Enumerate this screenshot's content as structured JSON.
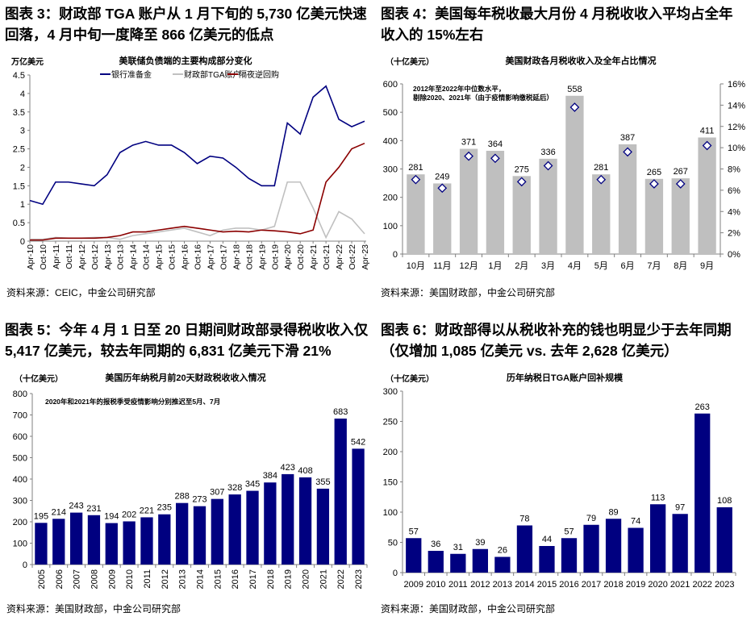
{
  "panels": [
    {
      "title_line1": "图表 3：财政部 TGA 账户从 1 月下旬的 5,730 亿美元快速",
      "title_line2": "回落，4 月中旬一度降至 866 亿美元的低点",
      "source": "资料来源：CEIC，中金公司研究部"
    },
    {
      "title_line1": "图表 4：美国每年税收最大月份 4 月税收收入平均占全年",
      "title_line2": "收入的 15%左右",
      "source": "资料来源：美国财政部，中金公司研究部"
    },
    {
      "title_line1": "图表 5：今年 4 月 1 日至 20 日期间财政部录得税收收入仅",
      "title_line2": "5,417 亿美元，较去年同期的 6,831 亿美元下滑 21%",
      "source": "资料来源：美国财政部，中金公司研究部"
    },
    {
      "title_line1": "图表  6：财政部得以从税收补充的钱也明显少于去年同期",
      "title_line2": "（仅增加 1,085 亿美元  vs. 去年 2,628 亿美元）",
      "source": "资料来源：美国财政部，中金公司研究部"
    }
  ],
  "chart_data": [
    {
      "type": "line",
      "title": "美联储负债端的主要构成部分变化",
      "ylabel": "万亿美元",
      "ylim": [
        0,
        4.5
      ],
      "yticks": [
        "0",
        "0.5",
        "1",
        "1.5",
        "2",
        "2.5",
        "3",
        "3.5",
        "4",
        "4.5"
      ],
      "legend_position": "top",
      "x": [
        "Apr-10",
        "Oct-10",
        "Apr-11",
        "Oct-11",
        "Apr-12",
        "Oct-12",
        "Apr-13",
        "Oct-13",
        "Apr-14",
        "Oct-14",
        "Apr-15",
        "Oct-15",
        "Apr-16",
        "Oct-16",
        "Apr-17",
        "Oct-17",
        "Apr-18",
        "Oct-18",
        "Apr-19",
        "Oct-19",
        "Apr-20",
        "Oct-20",
        "Apr-21",
        "Oct-21",
        "Apr-22",
        "Oct-22",
        "Apr-23"
      ],
      "series": [
        {
          "name": "银行准备金",
          "color": "#000080",
          "values": [
            1.1,
            1.0,
            1.6,
            1.6,
            1.55,
            1.5,
            1.8,
            2.4,
            2.6,
            2.7,
            2.6,
            2.6,
            2.4,
            2.1,
            2.3,
            2.25,
            2.0,
            1.7,
            1.5,
            1.5,
            3.2,
            2.9,
            3.9,
            4.2,
            3.3,
            3.1,
            3.25
          ]
        },
        {
          "name": "财政部TGA账户",
          "color": "#c0c0c0",
          "values": [
            0.05,
            0.05,
            0.1,
            0.08,
            0.08,
            0.1,
            0.1,
            0.05,
            0.15,
            0.2,
            0.25,
            0.3,
            0.35,
            0.25,
            0.15,
            0.3,
            0.35,
            0.35,
            0.3,
            0.4,
            1.6,
            1.6,
            0.9,
            0.1,
            0.8,
            0.6,
            0.2
          ]
        },
        {
          "name": "隔夜逆回购",
          "color": "#8b0000",
          "values": [
            0.03,
            0.03,
            0.08,
            0.08,
            0.08,
            0.08,
            0.1,
            0.15,
            0.25,
            0.25,
            0.3,
            0.35,
            0.4,
            0.35,
            0.3,
            0.25,
            0.27,
            0.25,
            0.3,
            0.28,
            0.25,
            0.2,
            0.3,
            1.6,
            2.0,
            2.5,
            2.65
          ]
        }
      ]
    },
    {
      "type": "bar",
      "title": "美国财政各月税收收入及全年占比情况",
      "ylabel": "（十亿美元）",
      "annotation_line1": "2012年至2022年中位数水平，",
      "annotation_line2": "剔除2020、2021年（由于疫情影响缴税延后）",
      "ylim": [
        0,
        600
      ],
      "yticks": [
        "0",
        "100",
        "200",
        "300",
        "400",
        "500",
        "600"
      ],
      "y2lim": [
        0,
        16
      ],
      "y2ticks": [
        "0%",
        "2%",
        "4%",
        "6%",
        "8%",
        "10%",
        "12%",
        "14%",
        "16%"
      ],
      "categories": [
        "10月",
        "11月",
        "12月",
        "1月",
        "2月",
        "3月",
        "4月",
        "5月",
        "6月",
        "7月",
        "8月",
        "9月"
      ],
      "values": [
        281,
        249,
        371,
        364,
        275,
        336,
        558,
        281,
        387,
        265,
        267,
        411
      ],
      "value_labels": [
        "281",
        "249",
        "371",
        "364",
        "275",
        "336",
        "558",
        "281",
        "387",
        "265",
        "267",
        "411"
      ],
      "share_pct": [
        7.0,
        6.2,
        9.2,
        9.0,
        6.8,
        8.3,
        13.8,
        7.0,
        9.6,
        6.6,
        6.6,
        10.2
      ],
      "bar_color": "#bfbfbf"
    },
    {
      "type": "bar",
      "title": "美国历年纳税月前20天财政税收收入情况",
      "ylabel": "（十亿美元）",
      "annotation": "2020年和2021年的报税季受疫情影响分别推迟至5月、7月",
      "ylim": [
        0,
        800
      ],
      "yticks": [
        "0",
        "100",
        "200",
        "300",
        "400",
        "500",
        "600",
        "700",
        "800"
      ],
      "categories": [
        "2005",
        "2006",
        "2007",
        "2008",
        "2009",
        "2010",
        "2011",
        "2012",
        "2013",
        "2014",
        "2015",
        "2016",
        "2017",
        "2018",
        "2019",
        "2020",
        "2021",
        "2022",
        "2023"
      ],
      "values": [
        195,
        214,
        243,
        231,
        194,
        202,
        221,
        235,
        288,
        273,
        307,
        328,
        345,
        384,
        423,
        408,
        355,
        683,
        542
      ],
      "value_labels": [
        "195",
        "214",
        "243",
        "231",
        "194",
        "202",
        "221",
        "235",
        "288",
        "273",
        "307",
        "328",
        "345",
        "384",
        "423",
        "408",
        "355",
        "683",
        "542"
      ],
      "bar_color": "#000080"
    },
    {
      "type": "bar",
      "title": "历年纳税日TGA账户回补规模",
      "ylabel": "（十亿美元）",
      "ylim": [
        0,
        300
      ],
      "yticks": [
        "0",
        "50",
        "100",
        "150",
        "200",
        "250",
        "300"
      ],
      "categories": [
        "2009",
        "2010",
        "2011",
        "2012",
        "2013",
        "2014",
        "2015",
        "2016",
        "2017",
        "2018",
        "2019",
        "2020",
        "2021",
        "2022",
        "2023"
      ],
      "values": [
        57,
        36,
        31,
        39,
        26,
        78,
        44,
        57,
        79,
        89,
        74,
        113,
        97,
        263,
        108
      ],
      "value_labels": [
        "57",
        "36",
        "31",
        "39",
        "26",
        "78",
        "44",
        "57",
        "79",
        "89",
        "74",
        "113",
        "97",
        "263",
        "108"
      ],
      "bar_color": "#000080"
    }
  ]
}
